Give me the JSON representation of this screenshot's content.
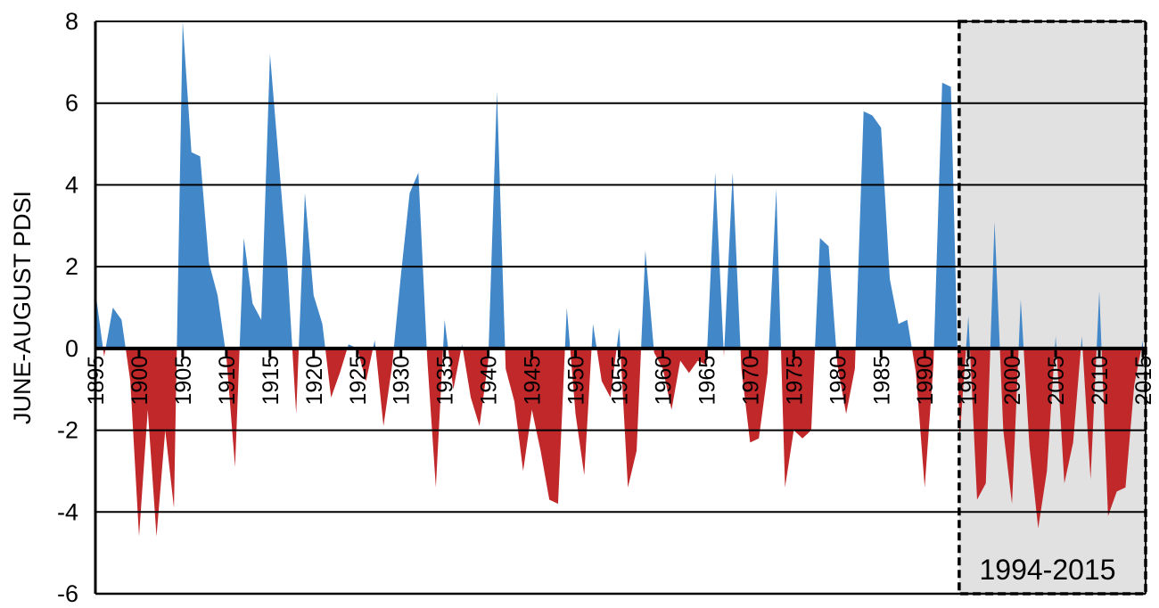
{
  "chart_data": {
    "type": "area",
    "title": "",
    "xlabel": "",
    "ylabel": "JUNE-AUGUST PDSI",
    "ylim": [
      -6,
      8
    ],
    "yticks": [
      -6,
      -4,
      -2,
      0,
      2,
      4,
      6,
      8
    ],
    "xlim": [
      1895,
      2015
    ],
    "xticks": [
      1895,
      1900,
      1905,
      1910,
      1915,
      1920,
      1925,
      1930,
      1935,
      1940,
      1945,
      1950,
      1955,
      1960,
      1965,
      1970,
      1975,
      1980,
      1985,
      1990,
      1995,
      2000,
      2005,
      2010,
      2015
    ],
    "grid": true,
    "legend": null,
    "colors": {
      "positive": "#4287c8",
      "negative": "#c0282a",
      "highlight_bg": "#e1e1e1"
    },
    "highlight": {
      "start": 1994,
      "end": 2015,
      "label": "1994-2015"
    },
    "x": [
      1895,
      1896,
      1897,
      1898,
      1899,
      1900,
      1901,
      1902,
      1903,
      1904,
      1905,
      1906,
      1907,
      1908,
      1909,
      1910,
      1911,
      1912,
      1913,
      1914,
      1915,
      1916,
      1917,
      1918,
      1919,
      1920,
      1921,
      1922,
      1923,
      1924,
      1925,
      1926,
      1927,
      1928,
      1929,
      1930,
      1931,
      1932,
      1933,
      1934,
      1935,
      1936,
      1937,
      1938,
      1939,
      1940,
      1941,
      1942,
      1943,
      1944,
      1945,
      1946,
      1947,
      1948,
      1949,
      1950,
      1951,
      1952,
      1953,
      1954,
      1955,
      1956,
      1957,
      1958,
      1959,
      1960,
      1961,
      1962,
      1963,
      1964,
      1965,
      1966,
      1967,
      1968,
      1969,
      1970,
      1971,
      1972,
      1973,
      1974,
      1975,
      1976,
      1977,
      1978,
      1979,
      1980,
      1981,
      1982,
      1983,
      1984,
      1985,
      1986,
      1987,
      1988,
      1989,
      1990,
      1991,
      1992,
      1993,
      1994,
      1995,
      1996,
      1997,
      1998,
      1999,
      2000,
      2001,
      2002,
      2003,
      2004,
      2005,
      2006,
      2007,
      2008,
      2009,
      2010,
      2011,
      2012,
      2013,
      2014,
      2015
    ],
    "series": [
      {
        "name": "June-August PDSI",
        "values": [
          1.4,
          -0.2,
          1.0,
          0.7,
          -0.8,
          -4.6,
          -1.5,
          -4.6,
          -2.0,
          -3.9,
          8.0,
          4.8,
          4.7,
          2.1,
          1.3,
          -0.2,
          -2.9,
          2.7,
          1.1,
          0.7,
          7.2,
          4.6,
          2.0,
          -1.6,
          3.8,
          1.3,
          0.6,
          -1.2,
          -0.6,
          0.1,
          0.0,
          -0.8,
          0.2,
          -1.9,
          -0.4,
          1.8,
          3.8,
          4.3,
          -0.2,
          -3.4,
          0.7,
          -1.0,
          0.1,
          -1.2,
          -1.9,
          -0.3,
          6.3,
          -0.5,
          -1.3,
          -3.0,
          -1.5,
          -2.5,
          -3.7,
          -3.8,
          1.0,
          -1.6,
          -3.1,
          0.6,
          -0.8,
          -1.2,
          0.5,
          -3.4,
          -2.5,
          2.4,
          -0.1,
          -0.5,
          -1.5,
          -0.3,
          -0.6,
          -0.3,
          -0.4,
          4.3,
          -0.2,
          4.3,
          -0.5,
          -2.3,
          -2.2,
          -0.6,
          3.9,
          -3.4,
          -2.0,
          -2.2,
          -2.0,
          2.7,
          2.5,
          -0.4,
          -1.6,
          -0.5,
          5.8,
          5.7,
          5.4,
          1.7,
          0.6,
          0.7,
          -0.6,
          -3.4,
          -0.4,
          6.5,
          6.4,
          -2.2,
          0.8,
          -3.7,
          -3.3,
          3.1,
          -2.0,
          -3.8,
          1.2,
          -2.4,
          -4.4,
          -3.0,
          0.3,
          -3.3,
          -2.3,
          0.3,
          -3.2,
          1.4,
          -4.1,
          -3.5,
          -3.4,
          -0.9,
          0.2
        ]
      }
    ]
  },
  "labels": {
    "ylabel": "JUNE-AUGUST PDSI",
    "highlight": "1994-2015"
  }
}
